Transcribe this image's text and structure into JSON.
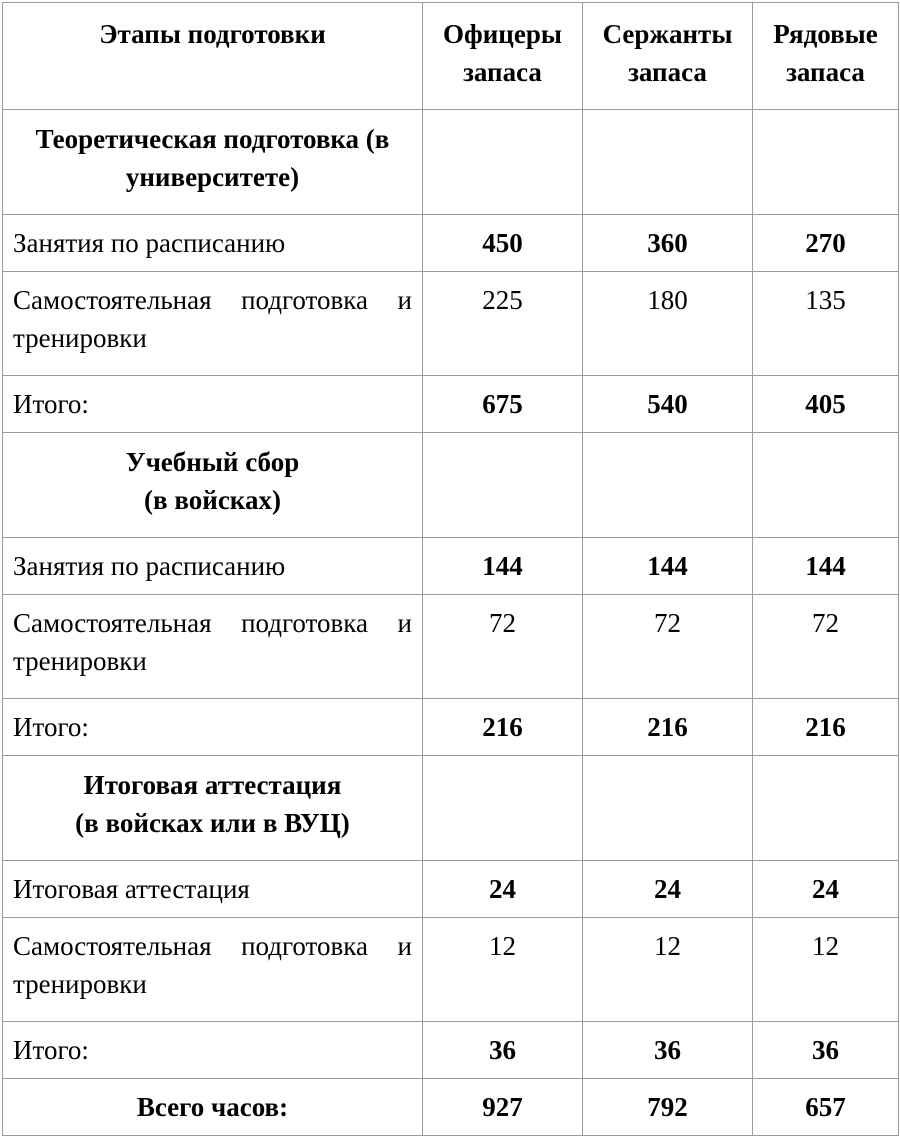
{
  "header": {
    "stage": "Этапы подготовки",
    "officers": "Офицеры запаса",
    "sergeants": "Сержанты запаса",
    "privates": "Рядовые запаса"
  },
  "sections": [
    {
      "title": "Теоретическая подготовка (в университете)",
      "rows": [
        {
          "label": "Занятия по расписанию",
          "values": [
            "450",
            "360",
            "270"
          ],
          "bold": true
        },
        {
          "label": "Самостоятельная подготовка и тренировки",
          "values": [
            "225",
            "180",
            "135"
          ],
          "bold": false
        },
        {
          "label": "Итого:",
          "values": [
            "675",
            "540",
            "405"
          ],
          "bold": true
        }
      ]
    },
    {
      "title": "Учебный сбор (в войсках)",
      "rows": [
        {
          "label": "Занятия по расписанию",
          "values": [
            "144",
            "144",
            "144"
          ],
          "bold": true
        },
        {
          "label": "Самостоятельная подготовка и тренировки",
          "values": [
            "72",
            "72",
            "72"
          ],
          "bold": false
        },
        {
          "label": "Итого:",
          "values": [
            "216",
            "216",
            "216"
          ],
          "bold": true
        }
      ]
    },
    {
      "title": "Итоговая аттестация (в войсках или в ВУЦ)",
      "rows": [
        {
          "label": "Итоговая аттестация",
          "values": [
            "24",
            "24",
            "24"
          ],
          "bold": true
        },
        {
          "label": "Самостоятельная подготовка и тренировки",
          "values": [
            "12",
            "12",
            "12"
          ],
          "bold": false
        },
        {
          "label": "Итого:",
          "values": [
            "36",
            "36",
            "36"
          ],
          "bold": true
        }
      ]
    }
  ],
  "total": {
    "label": "Всего часов:",
    "values": [
      "927",
      "792",
      "657"
    ]
  }
}
